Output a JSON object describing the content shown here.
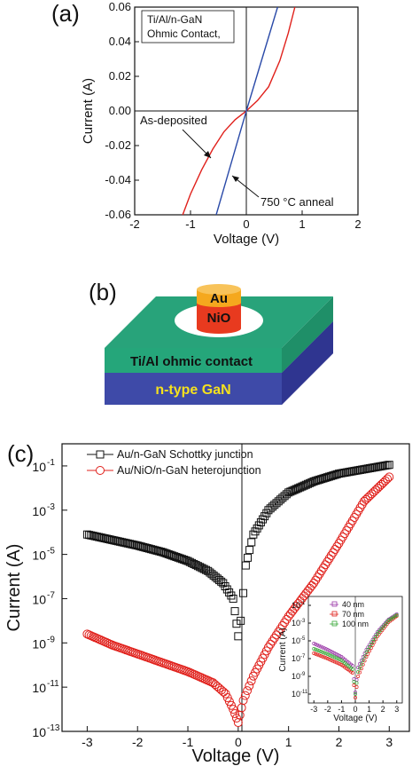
{
  "chart_data": [
    {
      "panel": "(a)",
      "type": "line",
      "xlabel": "Voltage (V)",
      "ylabel": "Current (A)",
      "xlim": [
        -2,
        2
      ],
      "ylim": [
        -0.06,
        0.06
      ],
      "x_ticks": [
        "-2",
        "-1",
        "0",
        "1",
        "2"
      ],
      "y_ticks": [
        "-0.06",
        "-0.04",
        "-0.02",
        "0.00",
        "0.02",
        "0.04",
        "0.06"
      ],
      "note_lines": [
        "Ti/Al/n-GaN",
        "Ohmic Contact,"
      ],
      "annotations": [
        "As-deposited",
        "750 °C anneal"
      ],
      "series": [
        {
          "name": "As-deposited",
          "color": "#e0201b",
          "points": [
            [
              -1.14,
              -0.06
            ],
            [
              -1.0,
              -0.048
            ],
            [
              -0.8,
              -0.034
            ],
            [
              -0.6,
              -0.022
            ],
            [
              -0.4,
              -0.012
            ],
            [
              -0.2,
              -0.005
            ],
            [
              0,
              0
            ],
            [
              0.2,
              0.006
            ],
            [
              0.4,
              0.014
            ],
            [
              0.6,
              0.029
            ],
            [
              0.75,
              0.045
            ],
            [
              0.87,
              0.06
            ]
          ]
        },
        {
          "name": "750 °C anneal",
          "color": "#2a4aa8",
          "points": [
            [
              -0.54,
              -0.06
            ],
            [
              0,
              0
            ],
            [
              0.56,
              0.06
            ]
          ]
        }
      ]
    },
    {
      "panel": "(b)",
      "type": "diagram",
      "layers": [
        "Au",
        "NiO",
        "Ti/Al ohmic contact",
        "n-type GaN"
      ]
    },
    {
      "panel": "(c)",
      "type": "scatter",
      "xlabel": "Voltage (V)",
      "ylabel": "Current (A)",
      "xlim": [
        -3.5,
        3.4
      ],
      "ylim_log10": [
        -13,
        0
      ],
      "x_ticks": [
        "-3",
        "-2",
        "-1",
        "0",
        "1",
        "2",
        "3"
      ],
      "y_tick_exponents": [
        "-1",
        "-3",
        "-5",
        "-7",
        "-9",
        "-11",
        "-13"
      ],
      "series": [
        {
          "name": "Au/n-GaN Schottky junction",
          "marker": "square",
          "color": "#111111",
          "points_log10": [
            [
              -3,
              -4.1
            ],
            [
              -2.5,
              -4.35
            ],
            [
              -2,
              -4.6
            ],
            [
              -1.5,
              -4.9
            ],
            [
              -1,
              -5.3
            ],
            [
              -0.6,
              -5.75
            ],
            [
              -0.3,
              -6.3
            ],
            [
              -0.1,
              -7
            ],
            [
              0,
              -8.7
            ],
            [
              0.05,
              -8
            ],
            [
              0.15,
              -5.5
            ],
            [
              0.3,
              -4.1
            ],
            [
              0.6,
              -3
            ],
            [
              1,
              -2.2
            ],
            [
              1.5,
              -1.7
            ],
            [
              2,
              -1.35
            ],
            [
              2.5,
              -1.15
            ],
            [
              3,
              -0.95
            ]
          ]
        },
        {
          "name": "Au/NiO/n-GaN heterojunction",
          "marker": "circle",
          "color": "#e0201b",
          "points_log10": [
            [
              -3,
              -8.6
            ],
            [
              -2.5,
              -9.1
            ],
            [
              -2,
              -9.5
            ],
            [
              -1.5,
              -9.9
            ],
            [
              -1,
              -10.3
            ],
            [
              -0.5,
              -10.8
            ],
            [
              -0.25,
              -11.3
            ],
            [
              -0.1,
              -12
            ],
            [
              0,
              -12.6
            ],
            [
              0.1,
              -11.6
            ],
            [
              0.3,
              -10.5
            ],
            [
              0.6,
              -9.2
            ],
            [
              1,
              -7.8
            ],
            [
              1.5,
              -6.3
            ],
            [
              2,
              -4.5
            ],
            [
              2.5,
              -2.6
            ],
            [
              3,
              -1.5
            ]
          ]
        }
      ],
      "inset": {
        "xlabel": "Voltage (V)",
        "ylabel": "Current (A)",
        "x_ticks": [
          "-3",
          "-2",
          "-1",
          "0",
          "1",
          "2",
          "3"
        ],
        "y_tick_exponents": [
          "-1",
          "-3",
          "-5",
          "-7",
          "-9",
          "-11"
        ],
        "legend": [
          "40 nm",
          "70 nm",
          "100 nm"
        ],
        "colors": [
          "#9b3aa8",
          "#e0201b",
          "#3aa83a"
        ]
      }
    }
  ]
}
